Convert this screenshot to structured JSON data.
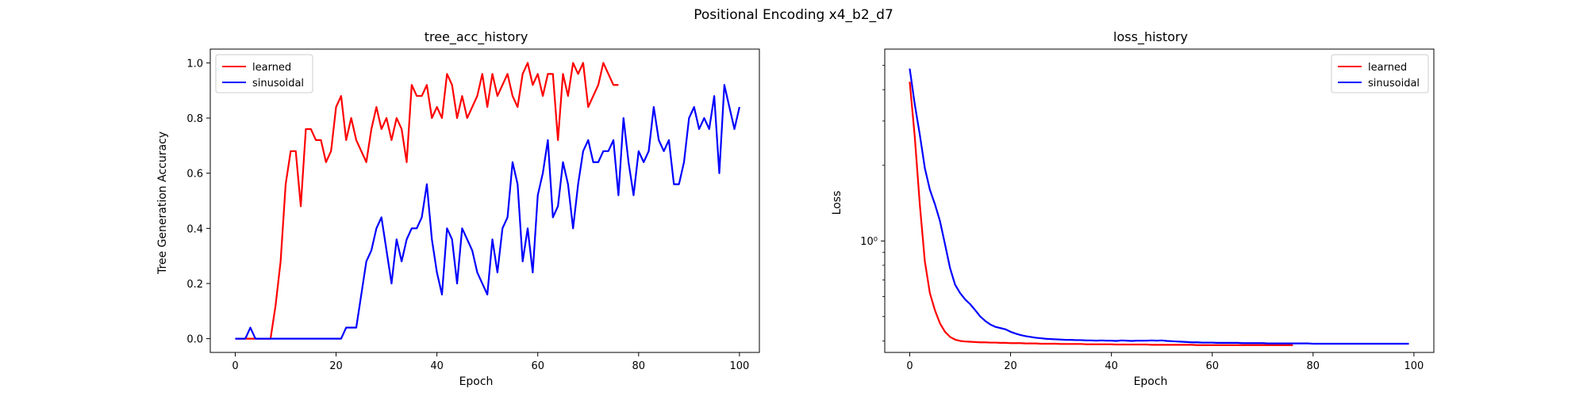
{
  "figure": {
    "suptitle": "Positional Encoding x4_b2_d7"
  },
  "chart_data": [
    {
      "type": "line",
      "title": "tree_acc_history",
      "xlabel": "Epoch",
      "ylabel": "Tree Generation Accuracy",
      "xlim": [
        -4.95,
        103.95
      ],
      "ylim": [
        -0.05,
        1.05
      ],
      "xticks": [
        0,
        20,
        40,
        60,
        80,
        100
      ],
      "xtick_labels": [
        "0",
        "20",
        "40",
        "60",
        "80",
        "100"
      ],
      "yticks": [
        0.0,
        0.2,
        0.4,
        0.6,
        0.8,
        1.0
      ],
      "ytick_labels": [
        "0.0",
        "0.2",
        "0.4",
        "0.6",
        "0.8",
        "1.0"
      ],
      "grid": false,
      "legend_position": "top-left",
      "series": [
        {
          "name": "learned",
          "color": "#ff0000",
          "values": [
            0,
            0,
            0,
            0,
            0,
            0,
            0,
            0,
            0.12,
            0.28,
            0.56,
            0.68,
            0.68,
            0.48,
            0.76,
            0.76,
            0.72,
            0.72,
            0.64,
            0.68,
            0.84,
            0.88,
            0.72,
            0.8,
            0.72,
            0.68,
            0.64,
            0.76,
            0.84,
            0.76,
            0.8,
            0.72,
            0.8,
            0.76,
            0.64,
            0.92,
            0.88,
            0.88,
            0.92,
            0.8,
            0.84,
            0.8,
            0.96,
            0.92,
            0.8,
            0.88,
            0.8,
            0.84,
            0.88,
            0.96,
            0.84,
            0.96,
            0.88,
            0.92,
            0.96,
            0.88,
            0.84,
            0.96,
            1.0,
            0.92,
            0.96,
            0.88,
            0.96,
            0.96,
            0.72,
            0.96,
            0.88,
            1.0,
            0.96,
            1.0,
            0.84,
            0.88,
            0.92,
            1.0,
            0.96,
            0.92,
            0.92
          ]
        },
        {
          "name": "sinusoidal",
          "color": "#0000ff",
          "values": [
            0,
            0,
            0,
            0.04,
            0,
            0,
            0,
            0,
            0,
            0,
            0,
            0,
            0,
            0,
            0,
            0,
            0,
            0,
            0,
            0,
            0,
            0,
            0.04,
            0.04,
            0.04,
            0.16,
            0.28,
            0.32,
            0.4,
            0.44,
            0.32,
            0.2,
            0.36,
            0.28,
            0.36,
            0.4,
            0.4,
            0.44,
            0.56,
            0.36,
            0.24,
            0.16,
            0.4,
            0.36,
            0.2,
            0.4,
            0.36,
            0.32,
            0.24,
            0.2,
            0.16,
            0.36,
            0.24,
            0.4,
            0.44,
            0.64,
            0.56,
            0.28,
            0.4,
            0.24,
            0.52,
            0.6,
            0.72,
            0.44,
            0.48,
            0.64,
            0.56,
            0.4,
            0.56,
            0.68,
            0.72,
            0.64,
            0.64,
            0.68,
            0.68,
            0.72,
            0.52,
            0.8,
            0.64,
            0.52,
            0.68,
            0.64,
            0.68,
            0.84,
            0.72,
            0.68,
            0.72,
            0.56,
            0.56,
            0.64,
            0.8,
            0.84,
            0.76,
            0.8,
            0.76,
            0.88,
            0.6,
            0.92,
            0.84,
            0.76,
            0.84
          ]
        }
      ]
    },
    {
      "type": "line",
      "title": "loss_history",
      "xlabel": "Epoch",
      "ylabel": "Loss",
      "yscale": "log",
      "xlim": [
        -4.95,
        103.95
      ],
      "ylim": [
        0.36,
        5.8
      ],
      "xticks": [
        0,
        20,
        40,
        60,
        80,
        100
      ],
      "xtick_labels": [
        "0",
        "20",
        "40",
        "60",
        "80",
        "100"
      ],
      "yticks": [
        1
      ],
      "ytick_labels": [
        "10⁰"
      ],
      "grid": false,
      "legend_position": "top-right",
      "series": [
        {
          "name": "learned",
          "color": "#ff0000",
          "values": [
            4.3,
            2.6,
            1.4,
            0.83,
            0.62,
            0.53,
            0.47,
            0.435,
            0.415,
            0.405,
            0.4,
            0.398,
            0.397,
            0.396,
            0.395,
            0.395,
            0.394,
            0.394,
            0.393,
            0.393,
            0.392,
            0.392,
            0.392,
            0.391,
            0.391,
            0.391,
            0.39,
            0.39,
            0.39,
            0.39,
            0.389,
            0.389,
            0.389,
            0.389,
            0.389,
            0.388,
            0.388,
            0.388,
            0.388,
            0.388,
            0.388,
            0.387,
            0.387,
            0.387,
            0.387,
            0.387,
            0.387,
            0.387,
            0.386,
            0.386,
            0.386,
            0.386,
            0.386,
            0.386,
            0.386,
            0.386,
            0.386,
            0.385,
            0.385,
            0.385,
            0.385,
            0.385,
            0.385,
            0.385,
            0.385,
            0.385,
            0.385,
            0.385,
            0.385,
            0.385,
            0.385,
            0.385,
            0.385,
            0.385,
            0.385,
            0.385,
            0.385
          ]
        },
        {
          "name": "sinusoidal",
          "color": "#0000ff",
          "values": [
            4.85,
            3.5,
            2.65,
            1.95,
            1.6,
            1.4,
            1.2,
            0.97,
            0.78,
            0.67,
            0.62,
            0.585,
            0.56,
            0.53,
            0.5,
            0.48,
            0.465,
            0.455,
            0.45,
            0.445,
            0.435,
            0.428,
            0.422,
            0.418,
            0.415,
            0.412,
            0.41,
            0.408,
            0.407,
            0.406,
            0.405,
            0.404,
            0.404,
            0.403,
            0.403,
            0.402,
            0.402,
            0.401,
            0.402,
            0.401,
            0.401,
            0.4,
            0.402,
            0.401,
            0.4,
            0.401,
            0.401,
            0.401,
            0.402,
            0.401,
            0.402,
            0.4,
            0.399,
            0.398,
            0.397,
            0.396,
            0.395,
            0.395,
            0.394,
            0.394,
            0.394,
            0.393,
            0.393,
            0.393,
            0.393,
            0.393,
            0.392,
            0.392,
            0.392,
            0.392,
            0.392,
            0.391,
            0.391,
            0.391,
            0.391,
            0.391,
            0.391,
            0.391,
            0.391,
            0.391,
            0.39,
            0.39,
            0.39,
            0.39,
            0.39,
            0.39,
            0.39,
            0.39,
            0.39,
            0.39,
            0.39,
            0.39,
            0.39,
            0.39,
            0.39,
            0.39,
            0.39,
            0.39,
            0.39,
            0.39
          ]
        }
      ]
    }
  ]
}
